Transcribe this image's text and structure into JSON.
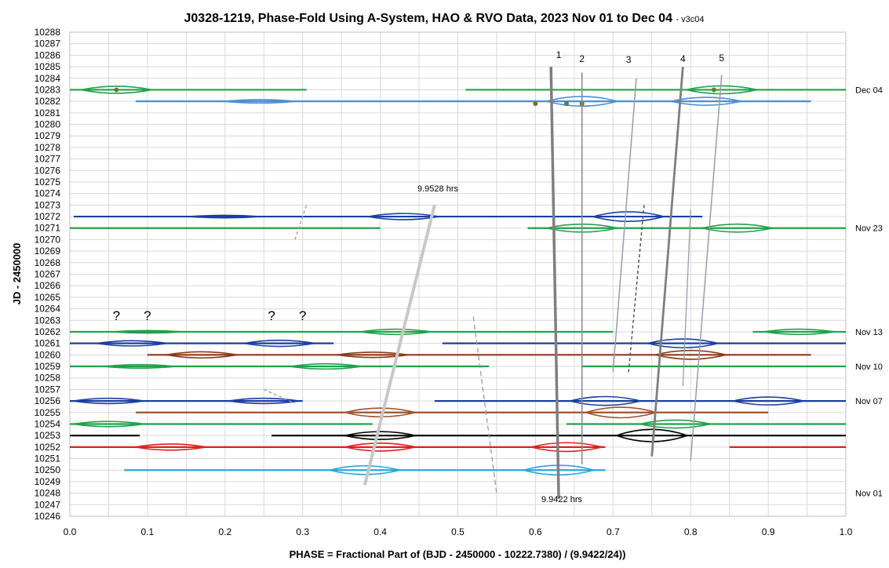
{
  "chart_data": {
    "type": "line",
    "title": "J0328-1219, Phase-Fold Using A-System, HAO & RVO Data, 2023 Nov 01 to Dec 04",
    "version": "- v3c04",
    "xlabel": "PHASE = Fractional Part of (BJD - 2450000 - 10222.7380) / (9.9422/24))",
    "ylabel": "JD - 2450000",
    "xlim": [
      0.0,
      1.0
    ],
    "ylim": [
      10246,
      10288
    ],
    "x_ticks": [
      "0.0",
      "0.1",
      "0.2",
      "0.3",
      "0.4",
      "0.5",
      "0.6",
      "0.7",
      "0.8",
      "0.9",
      "1.0"
    ],
    "y_ticks": [
      "10246",
      "10247",
      "10248",
      "10249",
      "10250",
      "10251",
      "10252",
      "10253",
      "10254",
      "10255",
      "10256",
      "10257",
      "10258",
      "10259",
      "10260",
      "10261",
      "10262",
      "10263",
      "10264",
      "10265",
      "10266",
      "10267",
      "10268",
      "10269",
      "10270",
      "10271",
      "10272",
      "10273",
      "10274",
      "10275",
      "10276",
      "10277",
      "10278",
      "10279",
      "10280",
      "10281",
      "10282",
      "10283",
      "10284",
      "10285",
      "10286",
      "10287",
      "10288"
    ],
    "grid": true,
    "colors": {
      "green": "#1fa24a",
      "blue": "#1a3fa0",
      "lightblue": "#4a90d4",
      "brown": "#8b3a1a",
      "orange": "#a0522d",
      "black": "#000000",
      "red": "#e0201c",
      "cyan": "#2ba6d8",
      "olive": "#6b7a2a",
      "gray": "#999999"
    },
    "series": [
      {
        "y": 10283,
        "color": "green",
        "segments": [
          [
            0.0,
            0.305
          ],
          [
            0.51,
            1.0
          ]
        ],
        "bulges": [
          [
            0.06,
            0.4
          ],
          [
            0.84,
            0.45
          ]
        ]
      },
      {
        "y": 10282,
        "color": "lightblue",
        "segments": [
          [
            0.085,
            0.955
          ]
        ],
        "bulges": [
          [
            0.245,
            0.2
          ],
          [
            0.66,
            0.55
          ],
          [
            0.82,
            0.45
          ]
        ]
      },
      {
        "y": 10272,
        "color": "blue",
        "segments": [
          [
            0.005,
            0.815
          ]
        ],
        "bulges": [
          [
            0.2,
            0.15
          ],
          [
            0.43,
            0.35
          ],
          [
            0.72,
            0.55
          ]
        ]
      },
      {
        "y": 10271,
        "color": "green",
        "segments": [
          [
            0.0,
            0.4
          ],
          [
            0.59,
            1.0
          ]
        ],
        "bulges": [
          [
            0.66,
            0.45
          ],
          [
            0.86,
            0.45
          ]
        ]
      },
      {
        "y": 10262,
        "color": "green",
        "segments": [
          [
            0.0,
            0.7
          ],
          [
            0.88,
            1.0
          ]
        ],
        "bulges": [
          [
            0.1,
            0.15
          ],
          [
            0.42,
            0.3
          ],
          [
            0.94,
            0.3
          ]
        ]
      },
      {
        "y": 10261,
        "color": "blue",
        "segments": [
          [
            0.0,
            0.34
          ],
          [
            0.48,
            1.0
          ]
        ],
        "bulges": [
          [
            0.08,
            0.3
          ],
          [
            0.27,
            0.35
          ],
          [
            0.79,
            0.5
          ]
        ]
      },
      {
        "y": 10260,
        "color": "brown",
        "segments": [
          [
            0.1,
            0.955
          ]
        ],
        "bulges": [
          [
            0.17,
            0.35
          ],
          [
            0.39,
            0.3
          ],
          [
            0.8,
            0.5
          ]
        ]
      },
      {
        "y": 10259,
        "color": "green",
        "segments": [
          [
            0.0,
            0.54
          ],
          [
            0.66,
            1.0
          ]
        ],
        "bulges": [
          [
            0.09,
            0.2
          ],
          [
            0.33,
            0.3
          ]
        ]
      },
      {
        "y": 10256,
        "color": "blue",
        "segments": [
          [
            0.0,
            0.3
          ],
          [
            0.47,
            1.0
          ]
        ],
        "bulges": [
          [
            0.05,
            0.3
          ],
          [
            0.25,
            0.3
          ],
          [
            0.69,
            0.5
          ],
          [
            0.9,
            0.45
          ]
        ]
      },
      {
        "y": 10255,
        "color": "orange",
        "segments": [
          [
            0.085,
            0.9
          ]
        ],
        "bulges": [
          [
            0.4,
            0.5
          ],
          [
            0.71,
            0.6
          ]
        ]
      },
      {
        "y": 10254,
        "color": "green",
        "segments": [
          [
            0.0,
            0.39
          ],
          [
            0.64,
            1.0
          ]
        ],
        "bulges": [
          [
            0.05,
            0.3
          ],
          [
            0.78,
            0.45
          ]
        ]
      },
      {
        "y": 10253,
        "color": "black",
        "segments": [
          [
            0.0,
            0.09
          ],
          [
            0.26,
            1.0
          ]
        ],
        "bulges": [
          [
            0.4,
            0.45
          ],
          [
            0.75,
            0.7
          ]
        ]
      },
      {
        "y": 10252,
        "color": "red",
        "segments": [
          [
            0.0,
            0.69
          ],
          [
            0.85,
            1.0
          ]
        ],
        "bulges": [
          [
            0.13,
            0.35
          ],
          [
            0.4,
            0.45
          ],
          [
            0.64,
            0.5
          ]
        ]
      },
      {
        "y": 10250,
        "color": "cyan",
        "segments": [
          [
            0.07,
            0.69
          ]
        ],
        "bulges": [
          [
            0.38,
            0.5
          ],
          [
            0.63,
            0.55
          ]
        ]
      }
    ],
    "dots": [
      {
        "x": 0.06,
        "y": 10283
      },
      {
        "x": 0.6,
        "y": 10281.8
      },
      {
        "x": 0.64,
        "y": 10281.8
      },
      {
        "x": 0.66,
        "y": 10281.8
      },
      {
        "x": 0.83,
        "y": 10283
      }
    ],
    "date_labels": [
      {
        "label": "Dec 04",
        "y": 10283.0
      },
      {
        "label": "Nov 23",
        "y": 10271.0
      },
      {
        "label": "Nov 13",
        "y": 10262.0
      },
      {
        "label": "Nov 10",
        "y": 10259.0
      },
      {
        "label": "Nov 07",
        "y": 10256.0
      },
      {
        "label": "Nov 01",
        "y": 10248.0
      }
    ],
    "feature_labels": [
      "1",
      "2",
      "3",
      "4",
      "5"
    ],
    "question_marks": [
      "?",
      "?",
      "?",
      "?"
    ],
    "period_labels": {
      "upper": "9.9528 hrs",
      "lower": "9.9422 hrs"
    }
  }
}
